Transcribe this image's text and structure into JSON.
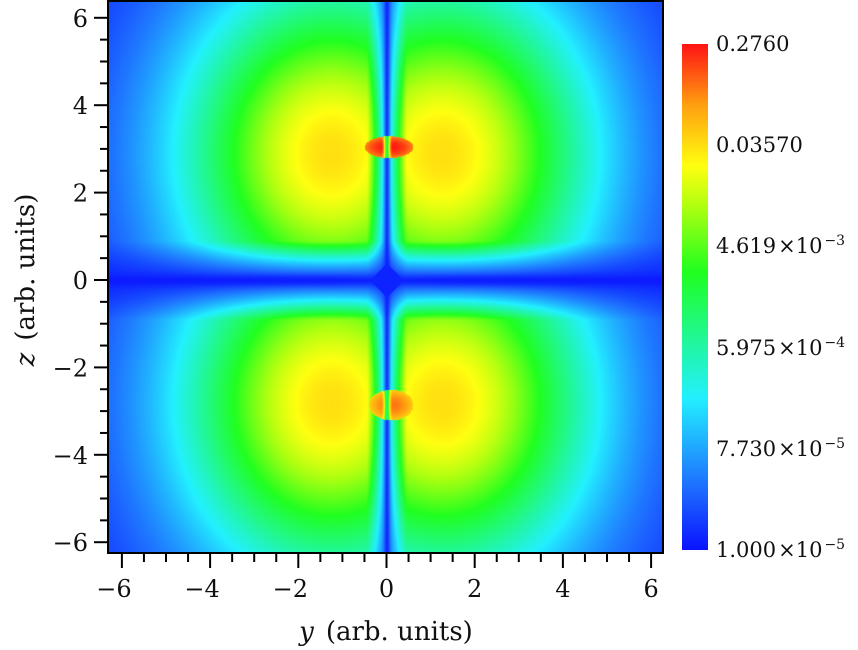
{
  "chart_data": {
    "type": "heatmap",
    "title": "",
    "xlabel": "y  (arb. units)",
    "ylabel": "z  (arb. units)",
    "xlabel_var": "y",
    "ylabel_var": "z",
    "axis_units": "(arb. units)",
    "xlim": [
      -6.4,
      6.4
    ],
    "ylim": [
      -6.4,
      6.4
    ],
    "x_ticks": [
      -6,
      -4,
      -2,
      0,
      2,
      4,
      6
    ],
    "y_ticks": [
      6,
      4,
      2,
      0,
      -2,
      -4,
      -6
    ],
    "x_tick_labels": [
      "−6",
      "−4",
      "−2",
      "0",
      "2",
      "4",
      "6"
    ],
    "y_tick_labels": [
      "6",
      "4",
      "2",
      "0",
      "−2",
      "−4",
      "−6"
    ],
    "minor_tick_step": 0.5,
    "grid": false,
    "colorscale": "log",
    "colorbar": {
      "position": "right",
      "min": 1e-05,
      "max": 0.276,
      "ticks": [
        {
          "value": 0.276,
          "mantissa": "0.2760",
          "exponent": ""
        },
        {
          "value": 0.0357,
          "mantissa": "0.03570",
          "exponent": ""
        },
        {
          "value": 0.004619,
          "mantissa": "4.619",
          "exponent": "−3"
        },
        {
          "value": 0.0005975,
          "mantissa": "5.975",
          "exponent": "−4"
        },
        {
          "value": 7.73e-05,
          "mantissa": "7.730",
          "exponent": "−5"
        },
        {
          "value": 1e-05,
          "mantissa": "1.000",
          "exponent": "−5"
        }
      ],
      "colors": [
        "#0a14ff",
        "#1e6cff",
        "#22f0ff",
        "#20ff20",
        "#b0ff10",
        "#ffff10",
        "#ffa010",
        "#ff1414"
      ]
    },
    "features": [
      {
        "name": "upper-left lobe max",
        "y": -1.2,
        "z": 2.9,
        "approx_value": 0.03
      },
      {
        "name": "upper-right lobe max",
        "y": 1.2,
        "z": 2.9,
        "approx_value": 0.03
      },
      {
        "name": "lower-left lobe max",
        "y": -1.2,
        "z": -2.8,
        "approx_value": 0.03
      },
      {
        "name": "lower-right lobe max",
        "y": 1.2,
        "z": -2.8,
        "approx_value": 0.03
      },
      {
        "name": "upper core peak",
        "y": 0.1,
        "z": 3.05,
        "approx_value": 0.276
      },
      {
        "name": "lower core peak",
        "y": 0.1,
        "z": -2.85,
        "approx_value": 0.15
      },
      {
        "name": "nodal line z=0 and y=0",
        "value": 1e-05
      }
    ]
  }
}
